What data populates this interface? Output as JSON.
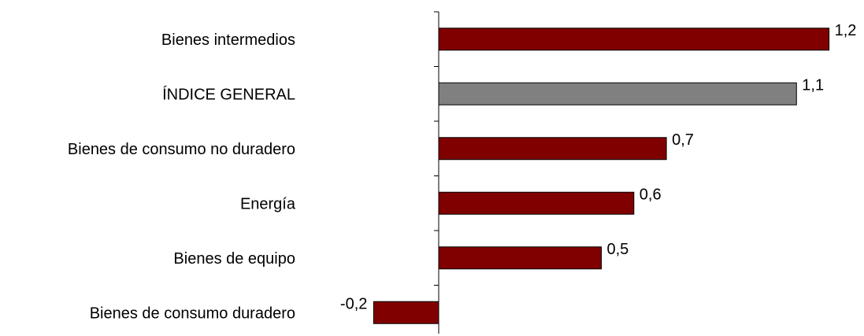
{
  "chart_data": {
    "type": "bar",
    "orientation": "horizontal",
    "title": "",
    "xlabel": "",
    "ylabel": "",
    "categories": [
      "Bienes intermedios",
      "ÍNDICE GENERAL",
      "Bienes de consumo no duradero",
      "Energía",
      "Bienes de equipo",
      "Bienes de consumo duradero"
    ],
    "values": [
      1.2,
      1.1,
      0.7,
      0.6,
      0.5,
      -0.2
    ],
    "value_labels": [
      "1,2",
      "1,1",
      "0,7",
      "0,6",
      "0,5",
      "-0,2"
    ],
    "colors": [
      "#800000",
      "#808080",
      "#800000",
      "#800000",
      "#800000",
      "#800000"
    ],
    "xlim": [
      -0.2,
      1.2
    ],
    "grid": false,
    "legend": "none"
  }
}
